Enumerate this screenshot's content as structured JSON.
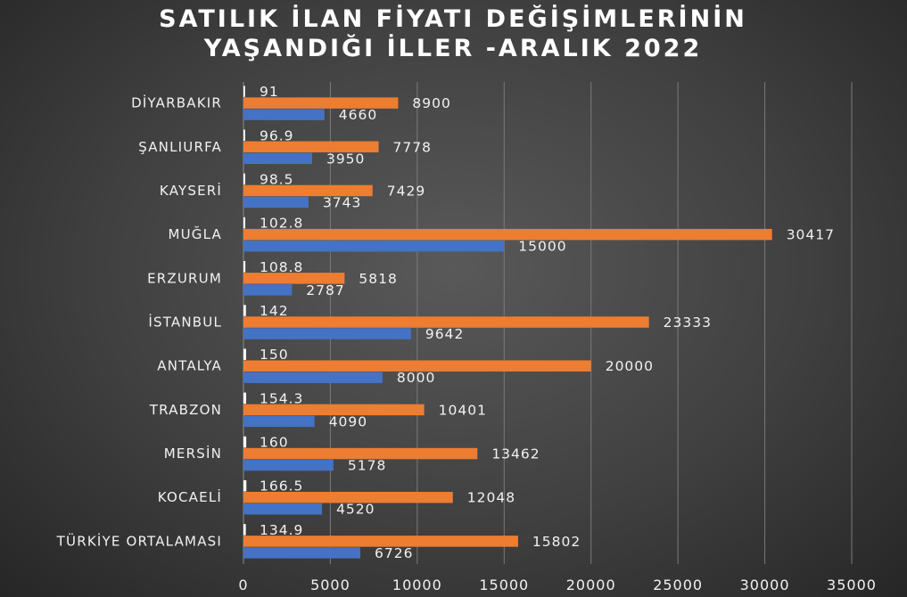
{
  "chart_data": {
    "type": "bar",
    "orientation": "horizontal",
    "title_lines": [
      "SATILIK İLAN FİYATI DEĞİŞİMLERİNİN",
      "YAŞANDIĞI İLLER -ARALIK 2022"
    ],
    "categories": [
      "DİYARBAKIR",
      "ŞANLIURFA",
      "KAYSERİ",
      "MUĞLA",
      "ERZURUM",
      "İSTANBUL",
      "ANTALYA",
      "TRABZON",
      "MERSİN",
      "KOCAELİ",
      "TÜRKİYE ORTALAMASI"
    ],
    "series": [
      {
        "color": "#ffffff",
        "values": [
          91,
          96.9,
          98.5,
          102.8,
          108.8,
          142,
          150,
          154.3,
          160,
          166.5,
          134.9
        ],
        "labels": [
          "91",
          "96.9",
          "98.5",
          "102.8",
          "108.8",
          "142",
          "150",
          "154.3",
          "160",
          "166.5",
          "134.9"
        ]
      },
      {
        "color": "#ed7d31",
        "values": [
          8900,
          7778,
          7429,
          30417,
          5818,
          23333,
          20000,
          10401,
          13462,
          12048,
          15802
        ],
        "labels": [
          "8900",
          "7778",
          "7429",
          "30417",
          "5818",
          "23333",
          "20000",
          "10401",
          "13462",
          "12048",
          "15802"
        ]
      },
      {
        "color": "#4472c4",
        "values": [
          4660,
          3950,
          3743,
          15000,
          2787,
          9642,
          8000,
          4090,
          5178,
          4520,
          6726
        ],
        "labels": [
          "4660",
          "3950",
          "3743",
          "15000",
          "2787",
          "9642",
          "8000",
          "4090",
          "5178",
          "4520",
          "6726"
        ]
      }
    ],
    "xlim": [
      0,
      35000
    ],
    "xticks": [
      0,
      5000,
      10000,
      15000,
      20000,
      25000,
      30000,
      35000
    ],
    "xtick_labels": [
      "0",
      "5000",
      "10000",
      "15000",
      "20000",
      "25000",
      "30000",
      "35000"
    ],
    "grid": true,
    "legend": "none"
  }
}
